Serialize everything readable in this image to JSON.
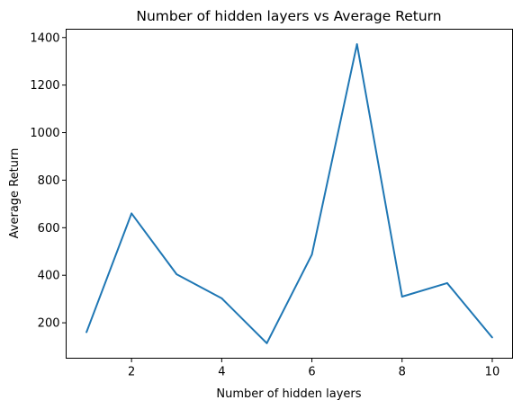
{
  "chart_data": {
    "type": "line",
    "title": "Number of hidden layers vs Average Return",
    "xlabel": "Number of hidden layers",
    "ylabel": "Average Return",
    "x": [
      1,
      2,
      3,
      4,
      5,
      6,
      7,
      8,
      9,
      10
    ],
    "series": [
      {
        "values": [
          160,
          660,
          404,
          303,
          114,
          487,
          1372,
          310,
          367,
          138
        ],
        "color": "#1f77b4"
      }
    ],
    "xlim": [
      0.55,
      10.45
    ],
    "ylim": [
      51,
      1435
    ],
    "xticks": [
      2,
      4,
      6,
      8,
      10
    ],
    "xtick_labels": [
      "2",
      "4",
      "6",
      "8",
      "10"
    ],
    "yticks": [
      200,
      400,
      600,
      800,
      1000,
      1200,
      1400
    ],
    "ytick_labels": [
      "200",
      "400",
      "600",
      "800",
      "1000",
      "1200",
      "1400"
    ],
    "grid": false,
    "legend": "none"
  }
}
